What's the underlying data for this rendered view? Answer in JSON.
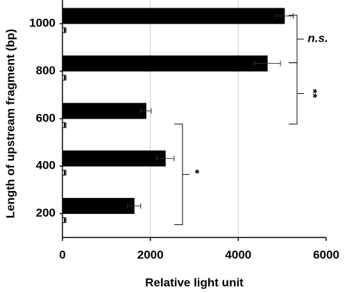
{
  "chart_data": {
    "type": "bar",
    "orientation": "horizontal",
    "x_label": "Relative light unit",
    "y_label": "Length of upstream fragment (bp)",
    "categories": [
      "1000",
      "800",
      "600",
      "400",
      "200"
    ],
    "series": [
      {
        "color": "#000000",
        "values": [
          5050,
          4660,
          1900,
          2340,
          1630
        ],
        "errors": [
          200,
          300,
          120,
          200,
          150
        ]
      },
      {
        "color": "#ffffff",
        "values": [
          60,
          60,
          60,
          60,
          60
        ],
        "errors": [
          20,
          20,
          20,
          20,
          20
        ]
      }
    ],
    "xlim": [
      0,
      6000
    ],
    "xticks": [
      0,
      2000,
      4000,
      6000
    ],
    "grid": true,
    "annotations": [
      "n.s.",
      "**",
      "*"
    ]
  }
}
